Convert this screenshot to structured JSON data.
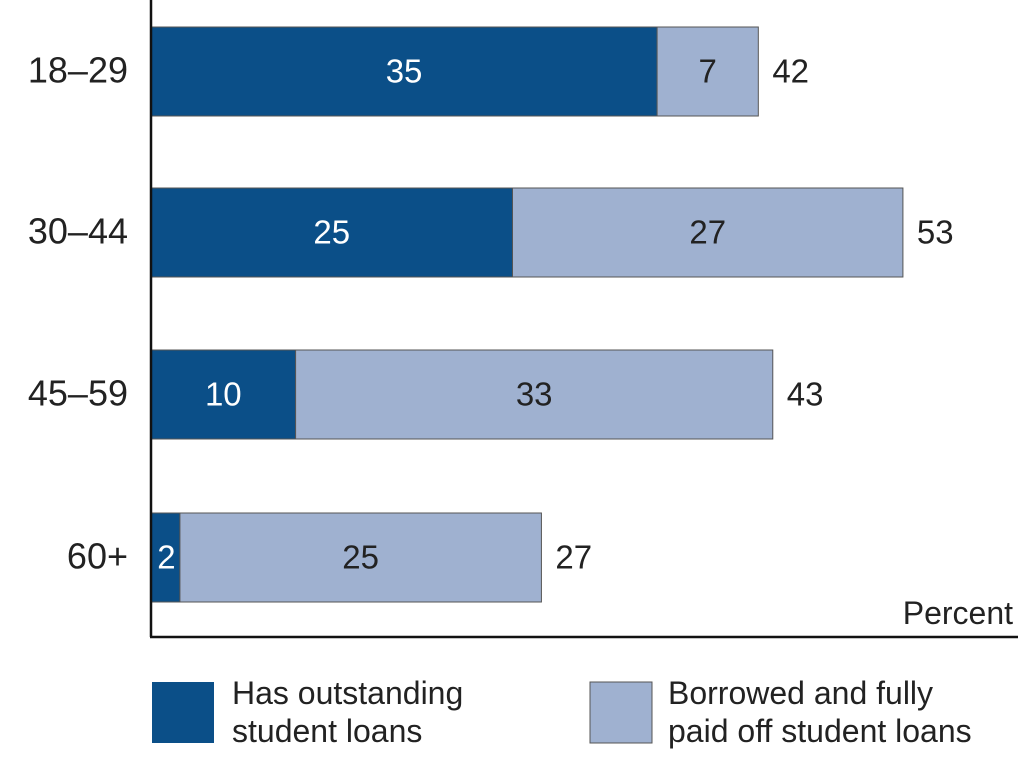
{
  "chart_data": {
    "type": "bar",
    "orientation": "horizontal",
    "stacked": true,
    "categories": [
      "18–29",
      "30–44",
      "45–59",
      "60+"
    ],
    "series": [
      {
        "name": "Has outstanding student loans",
        "values": [
          35,
          25,
          10,
          2
        ],
        "color": "#0b4f88"
      },
      {
        "name": "Borrowed and fully paid off student loans",
        "values": [
          7,
          27,
          33,
          25
        ],
        "color": "#9fb1d0"
      }
    ],
    "totals": [
      42,
      53,
      43,
      27
    ],
    "xlabel": "Percent",
    "xlim": [
      0,
      60
    ],
    "grid": false,
    "legend": {
      "placement": "bottom",
      "items": [
        {
          "line1": "Has outstanding",
          "line2": "student loans",
          "color": "#0b4f88"
        },
        {
          "line1": "Borrowed and fully",
          "line2": "paid off student loans",
          "color": "#9fb1d0"
        }
      ]
    }
  }
}
